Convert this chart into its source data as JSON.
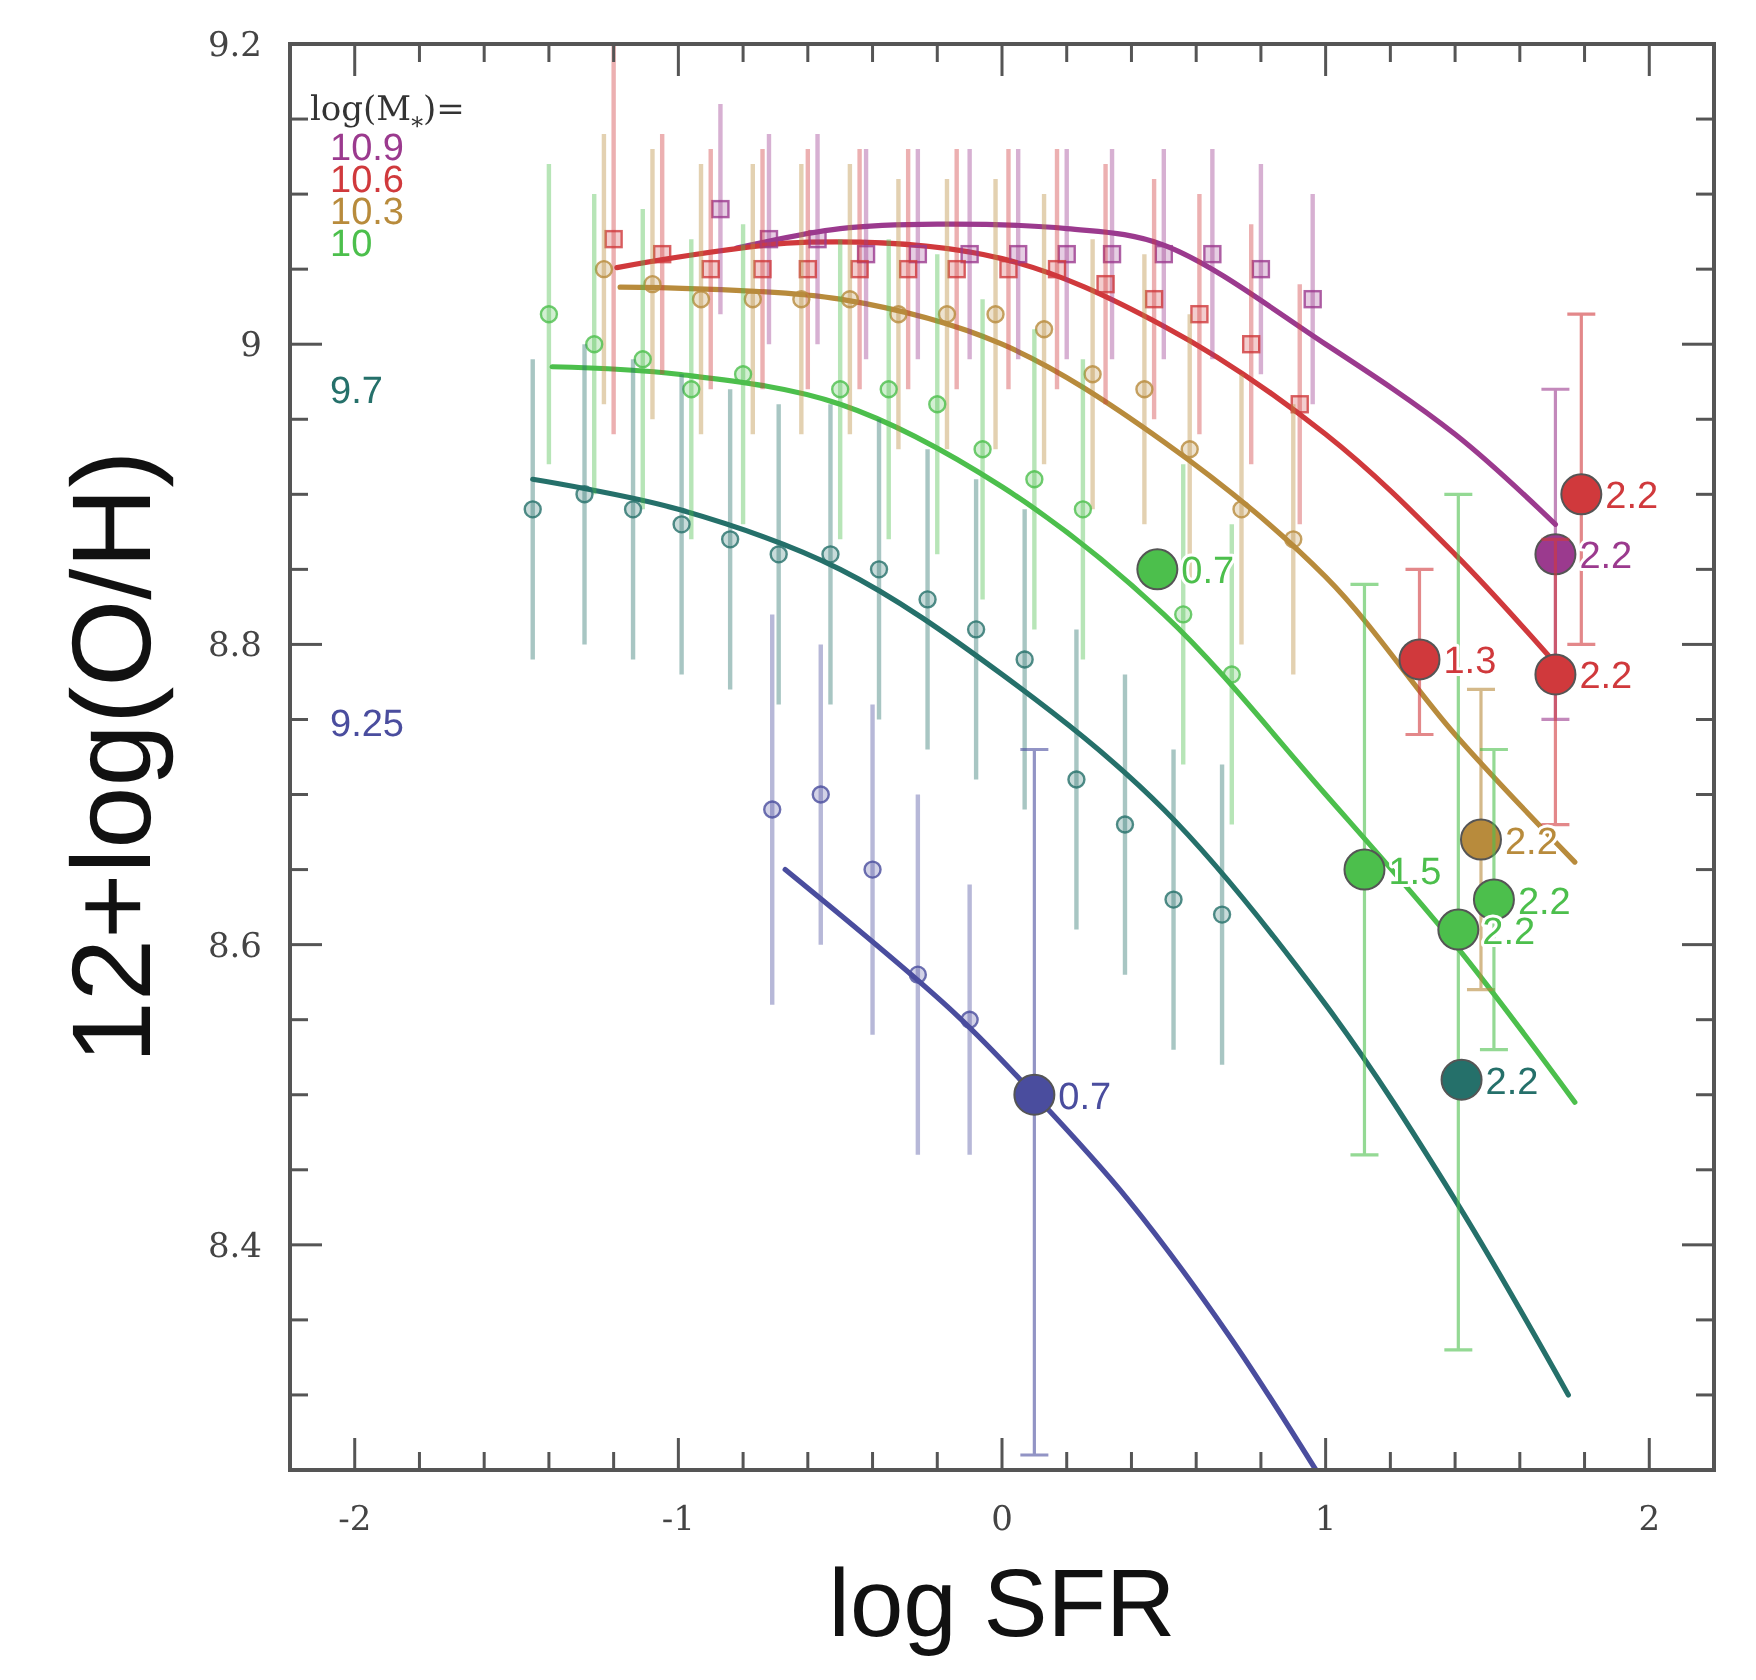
{
  "chart_data": {
    "type": "scatter",
    "xlabel": "log SFR",
    "ylabel": "12+log(O/H)",
    "legend_title": "log(M$_{*}$)=",
    "legend": "top left",
    "xlim": [
      -2.2,
      2.2
    ],
    "ylim": [
      8.25,
      9.2
    ],
    "xticks": [
      -2,
      {
        "value": -1.8,
        "label": null
      },
      {
        "value": -1.6,
        "label": null
      },
      {
        "value": -1.4,
        "label": null
      },
      {
        "value": -1.2,
        "label": null
      },
      -1,
      {
        "value": -0.8,
        "label": null
      },
      {
        "value": -0.6,
        "label": null
      },
      {
        "value": -0.4,
        "label": null
      },
      {
        "value": -0.2,
        "label": null
      },
      0,
      {
        "value": 0.2,
        "label": null
      },
      {
        "value": 0.4,
        "label": null
      },
      {
        "value": 0.6,
        "label": null
      },
      {
        "value": 0.8,
        "label": null
      },
      1,
      {
        "value": 1.2,
        "label": null
      },
      {
        "value": 1.4,
        "label": null
      },
      {
        "value": 1.6,
        "label": null
      },
      {
        "value": 1.8,
        "label": null
      },
      2
    ],
    "yticks": [
      {
        "value": 8.3,
        "label": null
      },
      {
        "value": 8.35,
        "label": null
      },
      8.4,
      {
        "value": 8.45,
        "label": null
      },
      {
        "value": 8.5,
        "label": null
      },
      {
        "value": 8.55,
        "label": null
      },
      8.6,
      {
        "value": 8.65,
        "label": null
      },
      {
        "value": 8.7,
        "label": null
      },
      {
        "value": 8.75,
        "label": null
      },
      8.8,
      {
        "value": 8.85,
        "label": null
      },
      {
        "value": 8.9,
        "label": null
      },
      {
        "value": 8.95,
        "label": null
      },
      9,
      {
        "value": 9.05,
        "label": null
      },
      {
        "value": 9.1,
        "label": null
      },
      {
        "value": 9.15,
        "label": null
      },
      9.2
    ],
    "series": [
      {
        "name": "10.9",
        "marker": "square",
        "color": "#9b3a8e",
        "x": [
          -0.87,
          -0.72,
          -0.57,
          -0.42,
          -0.26,
          -0.1,
          0.05,
          0.2,
          0.34,
          0.5,
          0.65,
          0.8,
          0.96
        ],
        "values": [
          9.09,
          9.07,
          9.07,
          9.06,
          9.06,
          9.06,
          9.06,
          9.06,
          9.06,
          9.06,
          9.06,
          9.05,
          9.03
        ],
        "errors": [
          0.07,
          0.07,
          0.07,
          0.07,
          0.07,
          0.07,
          0.07,
          0.07,
          0.07,
          0.07,
          0.07,
          0.07,
          0.07
        ]
      },
      {
        "name": "10.6",
        "marker": "square",
        "color": "#d0393c",
        "x": [
          -1.2,
          -1.05,
          -0.9,
          -0.74,
          -0.6,
          -0.44,
          -0.29,
          -0.14,
          0.02,
          0.17,
          0.32,
          0.47,
          0.61,
          0.77,
          0.92
        ],
        "values": [
          9.07,
          9.06,
          9.05,
          9.05,
          9.05,
          9.05,
          9.05,
          9.05,
          9.05,
          9.05,
          9.04,
          9.03,
          9.02,
          9.0,
          8.96
        ],
        "errors": [
          0.13,
          0.08,
          0.08,
          0.08,
          0.08,
          0.08,
          0.08,
          0.08,
          0.08,
          0.08,
          0.08,
          0.08,
          0.08,
          0.08,
          0.08
        ]
      },
      {
        "name": "10.3",
        "marker": "circle",
        "color": "#b88b3c",
        "x": [
          -1.23,
          -1.08,
          -0.93,
          -0.77,
          -0.62,
          -0.47,
          -0.32,
          -0.17,
          -0.02,
          0.13,
          0.28,
          0.44,
          0.58,
          0.74,
          0.9
        ],
        "values": [
          9.05,
          9.04,
          9.03,
          9.03,
          9.03,
          9.03,
          9.02,
          9.02,
          9.02,
          9.01,
          8.98,
          8.97,
          8.93,
          8.89,
          8.87
        ],
        "errors": [
          0.09,
          0.09,
          0.09,
          0.09,
          0.09,
          0.09,
          0.09,
          0.09,
          0.09,
          0.09,
          0.09,
          0.09,
          0.09,
          0.09,
          0.09
        ]
      },
      {
        "name": "10",
        "marker": "circle",
        "color": "#4cbf4c",
        "x": [
          -1.4,
          -1.26,
          -1.11,
          -0.96,
          -0.8,
          -0.5,
          -0.35,
          -0.2,
          -0.06,
          0.1,
          0.25,
          0.56,
          0.71
        ],
        "values": [
          9.02,
          9.0,
          8.99,
          8.97,
          8.98,
          8.97,
          8.97,
          8.96,
          8.93,
          8.91,
          8.89,
          8.82,
          8.78
        ],
        "errors": [
          0.1,
          0.1,
          0.1,
          0.1,
          0.1,
          0.1,
          0.1,
          0.1,
          0.1,
          0.1,
          0.1,
          0.1,
          0.1
        ]
      },
      {
        "name": "9.7",
        "marker": "circle",
        "color": "#25706a",
        "x": [
          -1.45,
          -1.29,
          -1.14,
          -0.99,
          -0.84,
          -0.69,
          -0.53,
          -0.38,
          -0.23,
          -0.08,
          0.07,
          0.23,
          0.38,
          0.53,
          0.68
        ],
        "values": [
          8.89,
          8.9,
          8.89,
          8.88,
          8.87,
          8.86,
          8.86,
          8.85,
          8.83,
          8.81,
          8.79,
          8.71,
          8.68,
          8.63,
          8.62
        ],
        "errors": [
          0.1,
          0.1,
          0.1,
          0.1,
          0.1,
          0.1,
          0.1,
          0.1,
          0.1,
          0.1,
          0.1,
          0.1,
          0.1,
          0.1,
          0.1
        ]
      },
      {
        "name": "9.25",
        "marker": "circle",
        "color": "#4a4d9e",
        "x": [
          -0.71,
          -0.56,
          -0.4,
          -0.26,
          -0.1
        ],
        "values": [
          8.69,
          8.7,
          8.65,
          8.58,
          8.55
        ],
        "errors": [
          0.13,
          0.1,
          0.11,
          0.12,
          0.09
        ]
      },
      {
        "type": "line",
        "color": "#9b3a8e",
        "x": [
          -0.82,
          -0.5,
          -0.2,
          0.2,
          0.5,
          1,
          1.4,
          1.71
        ],
        "values": [
          9.064,
          9.077,
          9.08,
          9.077,
          9.066,
          9.0,
          8.94,
          8.88
        ]
      },
      {
        "type": "line",
        "color": "#d0393c",
        "x": [
          -1.19,
          -0.6,
          0,
          0.5,
          1,
          1.4,
          1.74
        ],
        "values": [
          9.051,
          9.068,
          9.057,
          9.012,
          8.94,
          8.86,
          8.78
        ]
      },
      {
        "type": "line",
        "color": "#b88b3c",
        "x": [
          -1.18,
          -0.5,
          0,
          0.5,
          1,
          1.4,
          1.77
        ],
        "values": [
          9.038,
          9.03,
          9.0,
          8.935,
          8.845,
          8.74,
          8.655
        ]
      },
      {
        "type": "line",
        "color": "#4cbf4c",
        "x": [
          -1.39,
          -1,
          -0.5,
          0,
          0.5,
          1,
          1.4,
          1.77
        ],
        "values": [
          8.985,
          8.98,
          8.96,
          8.905,
          8.82,
          8.7,
          8.6,
          8.495
        ]
      },
      {
        "type": "line",
        "color": "#25706a",
        "x": [
          -1.45,
          -1,
          -0.5,
          0,
          0.5,
          1,
          1.4,
          1.75
        ],
        "values": [
          8.91,
          8.89,
          8.85,
          8.78,
          8.69,
          8.56,
          8.43,
          8.3
        ]
      },
      {
        "type": "line",
        "color": "#4a4d9e",
        "x": [
          -0.67,
          -0.15,
          0.1,
          0.39,
          0.7,
          0.97
        ],
        "values": [
          8.65,
          8.555,
          8.5,
          8.43,
          8.34,
          8.25
        ]
      },
      {
        "type": "bubble",
        "color": "#9b3a8e",
        "x": [
          1.71
        ],
        "values": [
          8.86
        ],
        "sizes": [
          1
        ],
        "errors": [
          [
            8.75,
            8.97
          ]
        ]
      },
      {
        "type": "bubble",
        "color": "#d0393c",
        "x": [
          1.29,
          1.71,
          1.79
        ],
        "values": [
          8.79,
          8.78,
          8.9
        ],
        "sizes": [
          1,
          1,
          1
        ],
        "errors": [
          [
            8.74,
            8.85
          ],
          [
            8.68,
            8.87
          ],
          [
            8.8,
            9.02
          ]
        ]
      },
      {
        "type": "bubble",
        "color": "#b88b3c",
        "x": [
          1.48
        ],
        "values": [
          8.67
        ],
        "sizes": [
          1
        ],
        "errors": [
          [
            8.57,
            8.77
          ]
        ]
      },
      {
        "type": "bubble",
        "color": "#4cbf4c",
        "x": [
          0.48,
          1.12,
          1.41,
          1.52
        ],
        "values": [
          8.85,
          8.65,
          8.61,
          8.63
        ],
        "sizes": [
          1,
          1,
          1,
          1
        ],
        "errors": [
          null,
          [
            8.46,
            8.84
          ],
          [
            8.33,
            8.9
          ],
          [
            8.53,
            8.73
          ]
        ]
      },
      {
        "type": "bubble",
        "color": "#25706a",
        "x": [
          1.42
        ],
        "values": [
          8.51
        ],
        "sizes": [
          1
        ]
      },
      {
        "type": "bubble",
        "color": "#4a4d9e",
        "x": [
          0.1
        ],
        "values": [
          8.5
        ],
        "sizes": [
          1
        ],
        "errors": [
          [
            8.26,
            8.73
          ]
        ]
      }
    ],
    "annotations": [
      {
        "text": "2.2",
        "x": 1.71,
        "y": 8.86
      },
      {
        "text": "1.3",
        "x": 1.29,
        "y": 8.79
      },
      {
        "text": "2.2",
        "x": 1.71,
        "y": 8.78
      },
      {
        "text": "2.2",
        "x": 1.79,
        "y": 8.9
      },
      {
        "text": "2.2",
        "x": 1.48,
        "y": 8.67
      },
      {
        "text": "0.7",
        "x": 0.48,
        "y": 8.85
      },
      {
        "text": "1.5",
        "x": 1.12,
        "y": 8.65
      },
      {
        "text": "2.2",
        "x": 1.41,
        "y": 8.61
      },
      {
        "text": "2.2",
        "x": 1.52,
        "y": 8.63
      },
      {
        "text": "2.2",
        "x": 1.42,
        "y": 8.51
      },
      {
        "text": "0.7",
        "x": 0.1,
        "y": 8.5
      }
    ]
  }
}
